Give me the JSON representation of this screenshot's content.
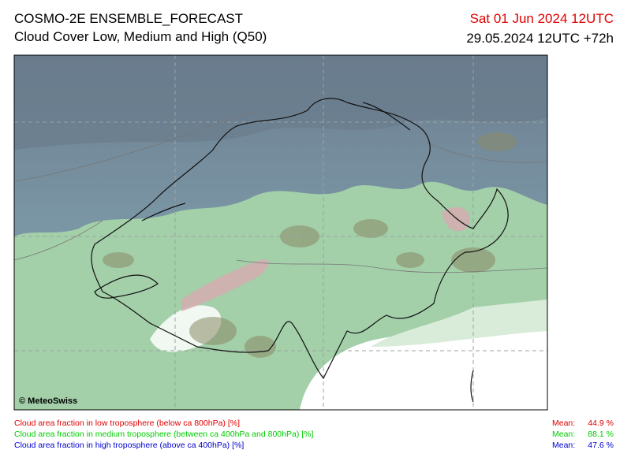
{
  "header": {
    "title": "COSMO-2E ENSEMBLE_FORECAST",
    "subtitle": "Cloud Cover Low, Medium and High (Q50)",
    "valid_time": "Sat 01 Jun 2024 12UTC",
    "run_time": "29.05.2024 12UTC +72h"
  },
  "map": {
    "credit": "© MeteoSwiss"
  },
  "legend": [
    {
      "label": "Cloud area fraction in low troposphere (below ca 800hPa) [%]",
      "mean_label": "Mean:",
      "mean": "44.9 %",
      "color": "#e00000"
    },
    {
      "label": "Cloud area fraction in medium troposphere (between ca 400hPa and 800hPa) [%]",
      "mean_label": "Mean:",
      "mean": "88.1 %",
      "color": "#00cc00"
    },
    {
      "label": "Cloud area fraction in high troposphere (above ca 400hPa) [%]",
      "mean_label": "Mean:",
      "mean": "47.6 %",
      "color": "#0000cc"
    }
  ]
}
